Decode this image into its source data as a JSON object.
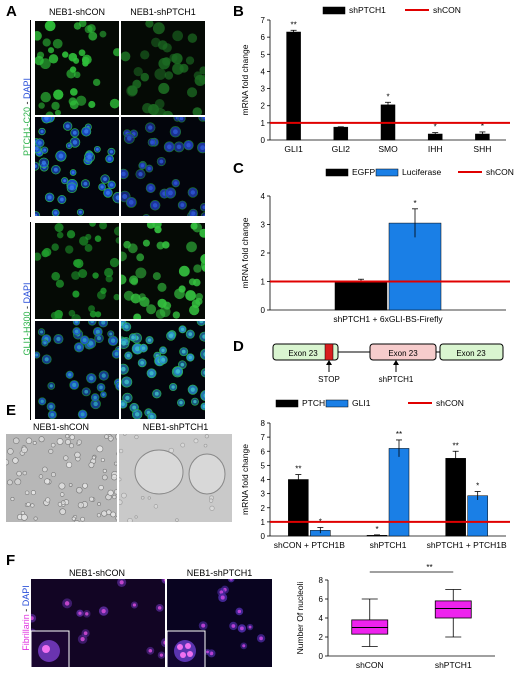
{
  "panels": {
    "A": {
      "letter": "A",
      "col1": "NEB1-shCON",
      "col2": "NEB1-shPTCH1",
      "row_label_1": "PTCH1-C20",
      "row_label_2": "GLI1-H300",
      "dapi": "DAPI",
      "dash": " - "
    },
    "B": {
      "letter": "B"
    },
    "C": {
      "letter": "C"
    },
    "D": {
      "letter": "D"
    },
    "E": {
      "letter": "E",
      "img1": "NEB1-shCON",
      "img2": "NEB1-shPTCH1"
    },
    "F": {
      "letter": "F",
      "img1": "NEB1-shCON",
      "img2": "NEB1-shPTCH1",
      "row_label": "Fibrillarin",
      "dapi": "DAPI",
      "dash": " - "
    }
  },
  "diagram_D": {
    "exons": [
      "Exon 23",
      "Exon 23",
      "Exon 23"
    ],
    "arrows": [
      "STOP",
      "shPTCH1"
    ]
  },
  "chart_data": [
    {
      "id": "B",
      "type": "bar",
      "ylabel": "mRNA fold change",
      "ylim": [
        0,
        7
      ],
      "yticks": [
        0,
        1,
        2,
        3,
        4,
        5,
        6,
        7
      ],
      "categories": [
        "GLI1",
        "GLI2",
        "SMO",
        "IHH",
        "SHH"
      ],
      "series": [
        {
          "name": "shPTCH1",
          "color": "#000000",
          "values": [
            6.3,
            0.75,
            2.05,
            0.35,
            0.35
          ],
          "errors": [
            0.1,
            0.02,
            0.15,
            0.08,
            0.12
          ],
          "sig": [
            "**",
            "",
            "*",
            "*",
            "*"
          ]
        }
      ],
      "reference": {
        "name": "shCON",
        "value": 1,
        "color": "#e00000"
      }
    },
    {
      "id": "C",
      "type": "bar",
      "ylabel": "mRNA fold change",
      "ylim": [
        0,
        4
      ],
      "yticks": [
        0,
        1,
        2,
        3,
        4
      ],
      "categories": [
        "shPTCH1 + 6xGLI-BS-Firefly"
      ],
      "series": [
        {
          "name": "EGFP",
          "color": "#000000",
          "values": [
            1.0
          ],
          "errors": [
            0.08
          ],
          "sig": [
            ""
          ]
        },
        {
          "name": "Luciferase",
          "color": "#1a7fe6",
          "values": [
            3.05
          ],
          "errors": [
            0.5
          ],
          "sig": [
            "*"
          ]
        }
      ],
      "reference": {
        "name": "shCON",
        "value": 1,
        "color": "#e00000"
      }
    },
    {
      "id": "D",
      "type": "bar",
      "ylabel": "mRNA fold change",
      "ylim": [
        0,
        8
      ],
      "yticks": [
        0,
        1,
        2,
        3,
        4,
        5,
        6,
        7,
        8
      ],
      "categories": [
        "shCON + PTCH1B",
        "shPTCH1",
        "shPTCH1 + PTCH1B"
      ],
      "series": [
        {
          "name": "PTCH1",
          "color": "#000000",
          "values": [
            4.0,
            0.05,
            5.5
          ],
          "errors": [
            0.35,
            0.03,
            0.5
          ],
          "sig": [
            "**",
            "*",
            "**"
          ]
        },
        {
          "name": "GLI1",
          "color": "#1a7fe6",
          "values": [
            0.4,
            6.2,
            2.85
          ],
          "errors": [
            0.2,
            0.6,
            0.3
          ],
          "sig": [
            "*",
            "**",
            "*"
          ]
        }
      ],
      "reference": {
        "name": "shCON",
        "value": 1,
        "color": "#e00000"
      }
    },
    {
      "id": "F",
      "type": "box",
      "ylabel": "Number Of nucleoli",
      "ylim": [
        0,
        8
      ],
      "yticks": [
        0,
        2,
        4,
        6,
        8
      ],
      "categories": [
        "shCON",
        "shPTCH1"
      ],
      "boxes": [
        {
          "min": 1,
          "q1": 2.3,
          "median": 3.0,
          "q3": 3.8,
          "max": 6
        },
        {
          "min": 2,
          "q1": 4.0,
          "median": 5.0,
          "q3": 5.8,
          "max": 7
        }
      ],
      "color": "#ee22ee",
      "significance": "**"
    }
  ]
}
